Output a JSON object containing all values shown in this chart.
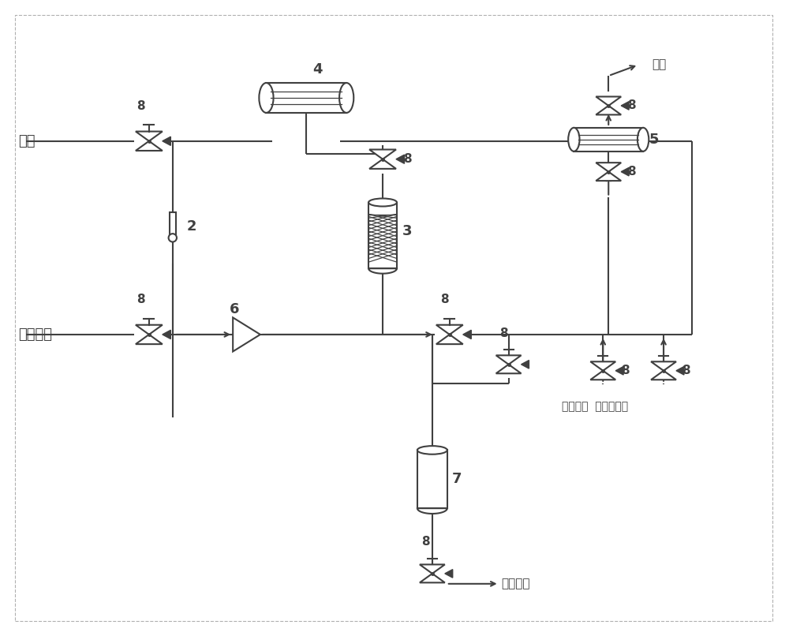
{
  "bg_color": "#ffffff",
  "lc": "#404040",
  "lw": 1.5,
  "fs": 13,
  "fs_s": 11,
  "air_label": "空气",
  "steam_label": "低压蒸汽",
  "vent_label": "放空",
  "sewage_label": "污水处理",
  "sulfur_label": "含硫氢气  氮气或液氮",
  "n2": "2",
  "n3": "3",
  "n4": "4",
  "n5": "5",
  "n6": "6",
  "n7": "7",
  "n8": "8"
}
